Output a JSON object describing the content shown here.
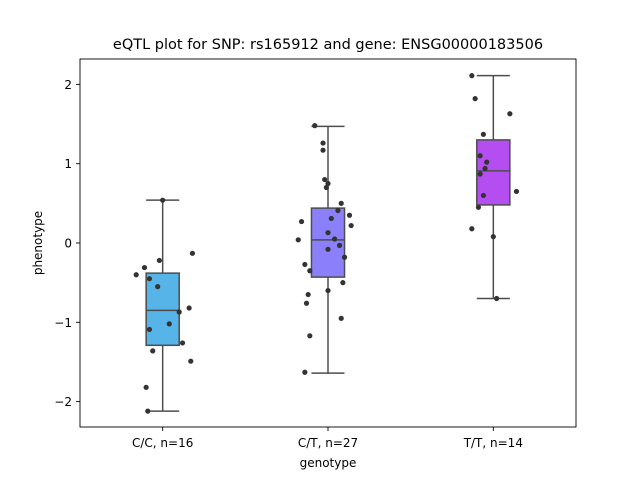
{
  "chart_data": {
    "type": "box",
    "title": "eQTL plot for SNP: rs165912 and gene: ENSG00000183506",
    "xlabel": "genotype",
    "ylabel": "phenotype",
    "ylim": [
      -2.32,
      2.32
    ],
    "yticks": [
      -2,
      -1,
      0,
      1,
      2
    ],
    "yticklabels": [
      "−2",
      "−1",
      "0",
      "1",
      "2"
    ],
    "grid": false,
    "categories": [
      "C/C, n=16",
      "C/T, n=27",
      "T/T, n=14"
    ],
    "colors": [
      "#56b4e9",
      "#8b80f9",
      "#b44ef0"
    ],
    "boxes": [
      {
        "q1": -1.29,
        "median": -0.85,
        "q3": -0.38,
        "whisker_low": -2.12,
        "whisker_high": 0.54
      },
      {
        "q1": -0.43,
        "median": 0.04,
        "q3": 0.44,
        "whisker_low": -1.64,
        "whisker_high": 1.47
      },
      {
        "q1": 0.48,
        "median": 0.91,
        "q3": 1.3,
        "whisker_low": -0.7,
        "whisker_high": 2.11
      }
    ],
    "points": [
      [
        {
          "x": 0.0,
          "y": 0.54
        },
        {
          "x": 0.18,
          "y": -0.13
        },
        {
          "x": -0.02,
          "y": -0.22
        },
        {
          "x": -0.11,
          "y": -0.31
        },
        {
          "x": -0.16,
          "y": -0.4
        },
        {
          "x": -0.08,
          "y": -0.45
        },
        {
          "x": -0.03,
          "y": -0.55
        },
        {
          "x": 0.16,
          "y": -0.82
        },
        {
          "x": 0.1,
          "y": -0.87
        },
        {
          "x": 0.04,
          "y": -1.02
        },
        {
          "x": -0.08,
          "y": -1.09
        },
        {
          "x": 0.12,
          "y": -1.26
        },
        {
          "x": -0.06,
          "y": -1.36
        },
        {
          "x": 0.17,
          "y": -1.49
        },
        {
          "x": -0.1,
          "y": -1.82
        },
        {
          "x": -0.09,
          "y": -2.12
        }
      ],
      [
        {
          "x": -0.08,
          "y": 1.48
        },
        {
          "x": -0.03,
          "y": 1.26
        },
        {
          "x": -0.03,
          "y": 1.17
        },
        {
          "x": -0.02,
          "y": 0.8
        },
        {
          "x": 0.0,
          "y": 0.75
        },
        {
          "x": -0.01,
          "y": 0.7
        },
        {
          "x": 0.08,
          "y": 0.5
        },
        {
          "x": 0.06,
          "y": 0.41
        },
        {
          "x": 0.13,
          "y": 0.35
        },
        {
          "x": 0.02,
          "y": 0.31
        },
        {
          "x": -0.16,
          "y": 0.27
        },
        {
          "x": 0.14,
          "y": 0.22
        },
        {
          "x": 0.0,
          "y": 0.13
        },
        {
          "x": -0.18,
          "y": 0.04
        },
        {
          "x": 0.07,
          "y": -0.03
        },
        {
          "x": 0.0,
          "y": -0.08
        },
        {
          "x": 0.1,
          "y": -0.18
        },
        {
          "x": -0.14,
          "y": -0.27
        },
        {
          "x": -0.11,
          "y": -0.35
        },
        {
          "x": 0.09,
          "y": -0.5
        },
        {
          "x": 0.0,
          "y": -0.6
        },
        {
          "x": -0.12,
          "y": -0.65
        },
        {
          "x": -0.13,
          "y": -0.76
        },
        {
          "x": 0.08,
          "y": -0.95
        },
        {
          "x": -0.11,
          "y": -1.17
        },
        {
          "x": -0.14,
          "y": -1.63
        },
        {
          "x": 0.04,
          "y": 0.05
        }
      ],
      [
        {
          "x": -0.13,
          "y": 2.11
        },
        {
          "x": -0.11,
          "y": 1.82
        },
        {
          "x": 0.1,
          "y": 1.63
        },
        {
          "x": -0.06,
          "y": 1.37
        },
        {
          "x": -0.08,
          "y": 1.1
        },
        {
          "x": -0.04,
          "y": 1.02
        },
        {
          "x": -0.05,
          "y": 0.94
        },
        {
          "x": -0.08,
          "y": 0.87
        },
        {
          "x": 0.14,
          "y": 0.65
        },
        {
          "x": -0.06,
          "y": 0.6
        },
        {
          "x": -0.09,
          "y": 0.45
        },
        {
          "x": -0.13,
          "y": 0.18
        },
        {
          "x": 0.0,
          "y": 0.08
        },
        {
          "x": 0.02,
          "y": -0.7
        }
      ]
    ]
  }
}
